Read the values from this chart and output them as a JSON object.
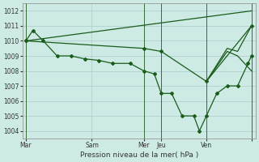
{
  "xlabel": "Pression niveau de la mer( hPa )",
  "bg_color": "#ceeae4",
  "line_color": "#1a5c1a",
  "grid_color": "#aacccc",
  "vline_color": "#3a6b3a",
  "ylim": [
    1003.5,
    1012.5
  ],
  "xlim": [
    0,
    336
  ],
  "yticks": [
    1004,
    1005,
    1006,
    1007,
    1008,
    1009,
    1010,
    1011,
    1012
  ],
  "xtick_positions": [
    5,
    100,
    175,
    200,
    265,
    330
  ],
  "xtick_labels": [
    "Mar",
    "Sam",
    "Mer",
    "Jeu",
    "Ven",
    ""
  ],
  "vline_positions": [
    5,
    175,
    200,
    265,
    330
  ],
  "series_main": {
    "x": [
      5,
      15,
      30,
      50,
      70,
      90,
      110,
      130,
      155,
      175,
      190,
      200,
      215,
      230,
      247,
      255,
      265,
      280,
      295,
      310,
      325,
      330
    ],
    "y": [
      1010.0,
      1010.7,
      1010.0,
      1009.0,
      1009.0,
      1008.8,
      1008.7,
      1008.5,
      1008.5,
      1008.0,
      1007.8,
      1006.5,
      1006.5,
      1005.0,
      1005.0,
      1004.0,
      1005.0,
      1006.5,
      1007.0,
      1007.0,
      1008.5,
      1009.0
    ]
  },
  "series_tri1": {
    "x": [
      5,
      175,
      200,
      265,
      330
    ],
    "y": [
      1010.0,
      1009.5,
      1009.3,
      1007.3,
      1011.0
    ]
  },
  "series_trend": {
    "x": [
      5,
      330
    ],
    "y": [
      1010.0,
      1012.0
    ]
  },
  "series_right1": {
    "x": [
      265,
      295,
      310,
      330
    ],
    "y": [
      1007.3,
      1009.3,
      1009.0,
      1008.0
    ]
  },
  "series_right2": {
    "x": [
      265,
      295,
      310,
      330
    ],
    "y": [
      1007.3,
      1009.5,
      1009.3,
      1011.0
    ]
  }
}
